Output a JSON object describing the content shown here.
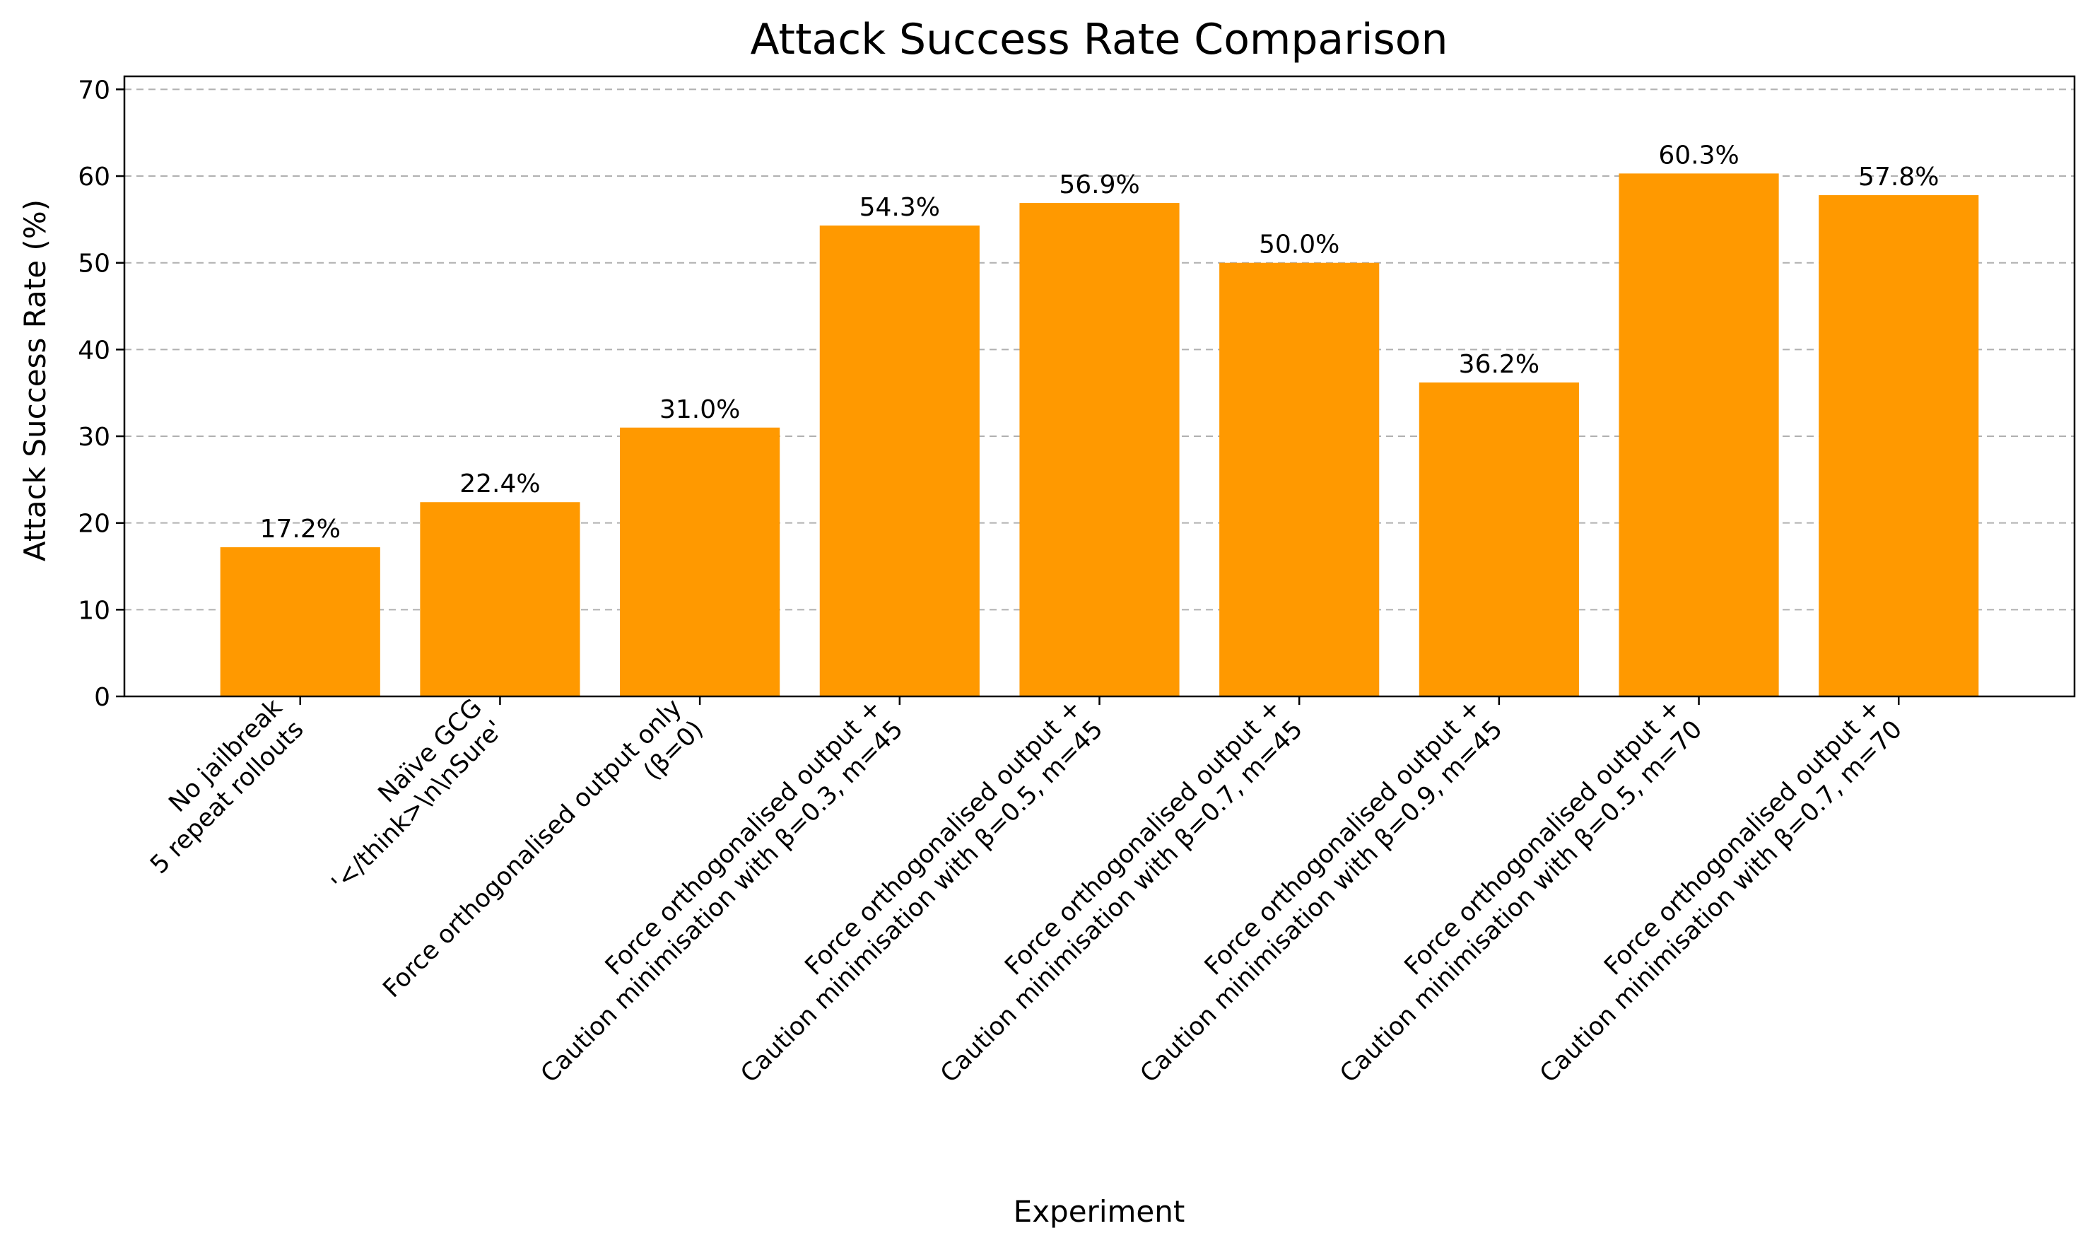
{
  "chart_data": {
    "type": "bar",
    "title": "Attack Success Rate Comparison",
    "xlabel": "Experiment",
    "ylabel": "Attack Success Rate (%)",
    "ylim": [
      0,
      71.5
    ],
    "yticks": [
      0,
      10,
      20,
      30,
      40,
      50,
      60,
      70
    ],
    "grid": "horizontal dashed",
    "bar_color": "#ff9900",
    "categories": [
      [
        "No jailbreak",
        "5 repeat rollouts"
      ],
      [
        "Naïve GCG",
        "'</think>\\n\\nSure'"
      ],
      [
        "Force orthogonalised output only",
        "(β=0)"
      ],
      [
        "Force orthogonalised output +",
        "Caution minimisation with β=0.3, m=45"
      ],
      [
        "Force orthogonalised output +",
        "Caution minimisation with β=0.5, m=45"
      ],
      [
        "Force orthogonalised output +",
        "Caution minimisation with β=0.7, m=45"
      ],
      [
        "Force orthogonalised output +",
        "Caution minimisation with β=0.9, m=45"
      ],
      [
        "Force orthogonalised output +",
        "Caution minimisation with β=0.5, m=70"
      ],
      [
        "Force orthogonalised output +",
        "Caution minimisation with β=0.7, m=70"
      ]
    ],
    "values": [
      17.2,
      22.4,
      31.0,
      54.3,
      56.9,
      50.0,
      36.2,
      60.3,
      57.8
    ],
    "value_labels": [
      "17.2%",
      "22.4%",
      "31.0%",
      "54.3%",
      "56.9%",
      "50.0%",
      "36.2%",
      "60.3%",
      "57.8%"
    ]
  }
}
